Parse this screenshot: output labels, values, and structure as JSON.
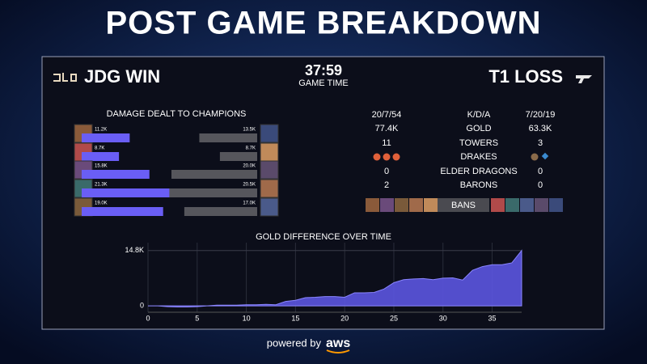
{
  "header": {
    "title": "POST GAME BREAKDOWN"
  },
  "scoreboard": {
    "left_team": "JDG WIN",
    "time": "37:59",
    "time_label": "GAME TIME",
    "right_team": "T1 LOSS"
  },
  "damage": {
    "title": "DAMAGE DEALT TO CHAMPIONS",
    "jdg": {
      "values": [
        11200,
        8700,
        15800,
        21300,
        19000
      ],
      "value_labels": [
        "11.2K",
        "8.7K",
        "15.8K",
        "21.3K",
        "19.0K"
      ],
      "color": "#6a5ef5"
    },
    "t1": {
      "values": [
        13500,
        8700,
        20000,
        20500,
        17000
      ],
      "value_labels": [
        "13.5K",
        "8.7K",
        "20.0K",
        "20.5K",
        "17.0K"
      ],
      "color": "#56565c"
    }
  },
  "stats": {
    "rows": [
      {
        "label": "K/D/A",
        "left": "20/7/54",
        "right": "7/20/19"
      },
      {
        "label": "GOLD",
        "left": "77.4K",
        "right": "63.3K"
      },
      {
        "label": "TOWERS",
        "left": 11,
        "right": 3
      },
      {
        "label": "DRAKES"
      },
      {
        "label": "ELDER DRAGONS",
        "left": 0,
        "right": 0
      },
      {
        "label": "BARONS",
        "left": 2,
        "right": 0
      }
    ],
    "bans_label": "BANS"
  },
  "gold_chart": {
    "title": "GOLD DIFFERENCE OVER TIME",
    "x": [
      0,
      1,
      2,
      3,
      4,
      5,
      6,
      7,
      8,
      9,
      10,
      11,
      12,
      13,
      14,
      15,
      16,
      17,
      18,
      19,
      20,
      21,
      22,
      23,
      24,
      25,
      26,
      27,
      28,
      29,
      30,
      31,
      32,
      33,
      34,
      35,
      36,
      37,
      38
    ],
    "values": [
      0,
      0,
      -200,
      -300,
      -300,
      -200,
      0,
      200,
      200,
      200,
      300,
      300,
      400,
      300,
      1200,
      1500,
      2200,
      2300,
      2500,
      2500,
      2300,
      3500,
      3500,
      3600,
      4500,
      6200,
      7000,
      7200,
      7300,
      7000,
      7400,
      7500,
      6900,
      9500,
      10500,
      11000,
      11000,
      11500,
      14800
    ],
    "xlim": [
      0,
      38
    ],
    "xticks": [
      0,
      5,
      10,
      15,
      20,
      25,
      30,
      35
    ],
    "ylim": [
      -1700,
      16900
    ],
    "yticks": [
      0,
      {
        "value": 14800,
        "label": "14.8K"
      }
    ],
    "color": "#5b55e0"
  },
  "footer": {
    "powered": "powered by",
    "brand": "aws"
  }
}
